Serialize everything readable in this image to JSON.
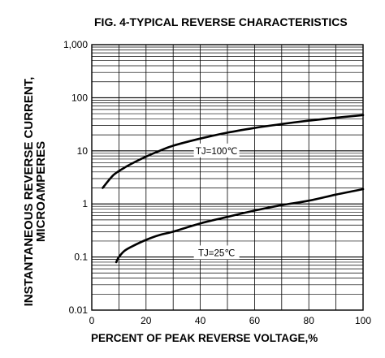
{
  "chart_data": {
    "type": "line",
    "title": "FIG. 4-TYPICAL REVERSE CHARACTERISTICS",
    "xlabel": "PERCENT OF PEAK REVERSE VOLTAGE,%",
    "ylabel_lines": [
      "INSTANTANEOUS REVERSE CURRENT,",
      "MICROAMPERES"
    ],
    "xlim": [
      0,
      100
    ],
    "ylim": [
      0.01,
      1000
    ],
    "yscale": "log",
    "grid": true,
    "x_ticks": [
      "0",
      "20",
      "40",
      "60",
      "80",
      "100"
    ],
    "y_ticks": [
      "0.01",
      "0.1",
      "1",
      "10",
      "100",
      "1,000"
    ],
    "series": [
      {
        "name": "TJ=100℃",
        "x": [
          4,
          8,
          12,
          16,
          20,
          25,
          30,
          40,
          50,
          60,
          70,
          80,
          90,
          100
        ],
        "y": [
          2.0,
          3.5,
          4.8,
          6.2,
          7.8,
          10,
          12.5,
          17,
          22,
          27,
          32,
          37,
          42,
          47
        ]
      },
      {
        "name": "TJ=25℃",
        "x": [
          9,
          10,
          12,
          15,
          20,
          25,
          30,
          40,
          50,
          60,
          70,
          80,
          90,
          100
        ],
        "y": [
          0.08,
          0.1,
          0.13,
          0.16,
          0.21,
          0.26,
          0.3,
          0.43,
          0.57,
          0.75,
          0.95,
          1.15,
          1.5,
          1.9
        ]
      }
    ]
  }
}
